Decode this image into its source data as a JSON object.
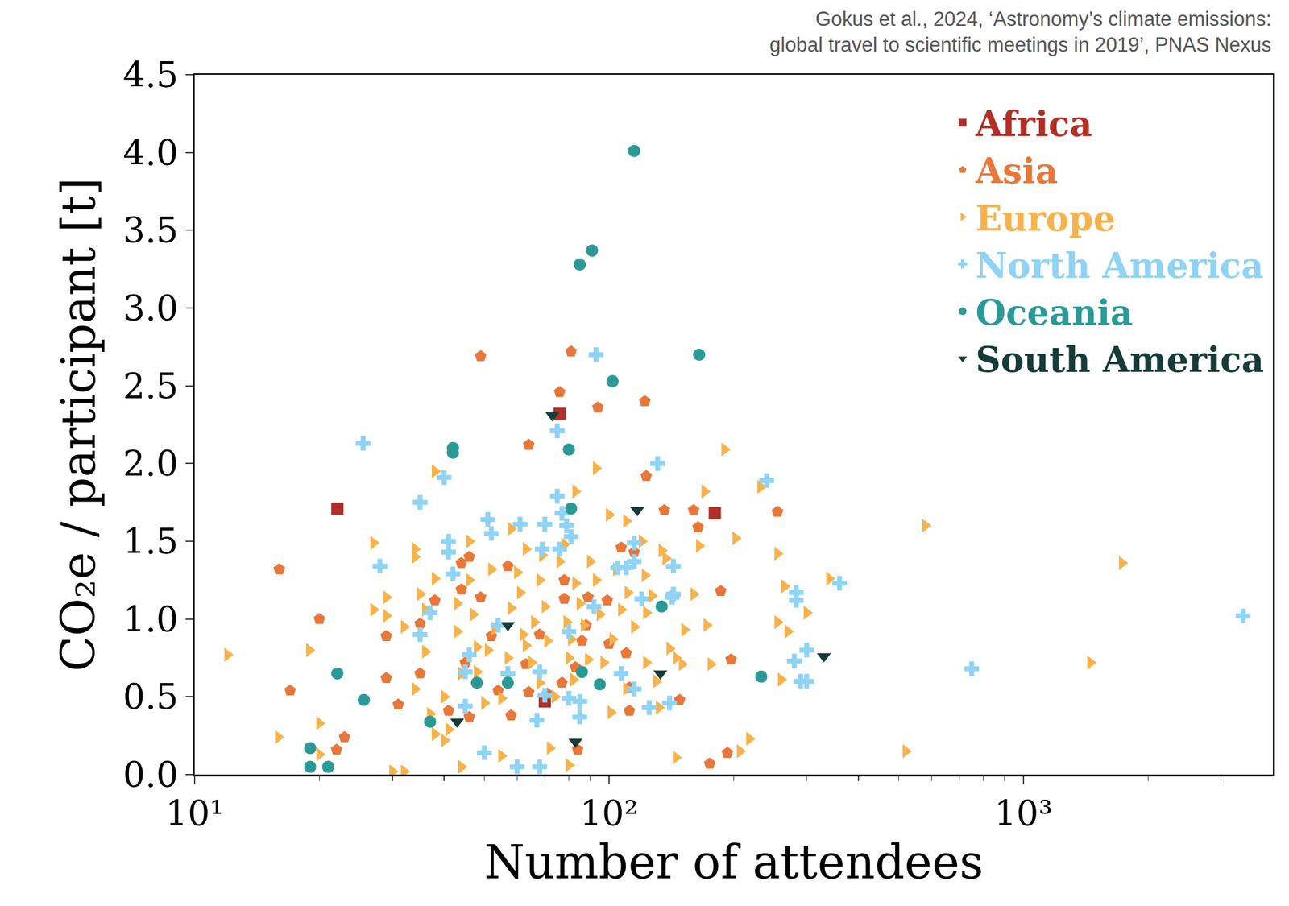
{
  "chart_data": {
    "type": "scatter",
    "subtitle": [
      "Gokus et al., 2024, ‘Astronomy’s climate emissions:",
      "global travel to scientific meetings in 2019’, PNAS Nexus"
    ],
    "x_label": "Number of attendees",
    "y_label": "CO₂e / participant [t]",
    "log": "x",
    "grid": false,
    "legend": "top right",
    "xlim": [
      10,
      4000
    ],
    "xticks": [
      {
        "value": 10,
        "label": "10¹"
      },
      {
        "value": 100,
        "label": "10²"
      },
      {
        "value": 1000,
        "label": "10³"
      }
    ],
    "ylim": [
      0,
      4.5
    ],
    "yticks": [
      {
        "value": 0,
        "label": "0.0"
      },
      0.5,
      {
        "value": 1,
        "label": "1.0"
      },
      1.5,
      {
        "value": 2,
        "label": "2.0"
      },
      2.5,
      {
        "value": 3,
        "label": "3.0"
      },
      3.5,
      {
        "value": 4,
        "label": "4.0"
      },
      4.5
    ],
    "series": [
      {
        "name": "Africa",
        "color": "#b22f27",
        "marker": "square",
        "x": [
          22.1,
          76,
          180,
          70
        ],
        "values": [
          1.71,
          2.32,
          1.68,
          0.47
        ]
      },
      {
        "name": "Asia",
        "color": "#e8773a",
        "marker": "pentagon",
        "x": [
          16,
          17,
          20,
          22,
          23,
          49,
          81,
          76,
          94,
          122,
          64,
          123,
          136,
          160,
          164,
          255,
          186,
          197,
          193,
          175,
          84,
          148,
          112,
          112,
          110,
          115,
          107,
          99,
          89,
          78,
          88,
          86,
          83,
          77,
          71,
          64,
          63,
          58,
          54,
          52,
          49,
          44,
          46,
          44,
          57,
          38,
          35,
          35,
          29,
          29,
          31,
          41,
          46,
          45,
          68,
          100,
          78
        ],
        "values": [
          1.32,
          0.54,
          1.0,
          0.16,
          0.24,
          2.69,
          2.72,
          2.46,
          2.36,
          2.4,
          2.12,
          1.92,
          1.7,
          1.7,
          1.59,
          1.69,
          1.18,
          0.74,
          0.14,
          0.07,
          0.16,
          0.48,
          0.41,
          0.56,
          0.78,
          1.43,
          1.46,
          1.12,
          1.14,
          1.13,
          0.96,
          0.86,
          0.69,
          0.59,
          0.52,
          0.53,
          0.71,
          0.38,
          0.54,
          0.89,
          1.14,
          1.19,
          1.4,
          1.36,
          1.34,
          1.12,
          0.97,
          0.65,
          0.89,
          0.62,
          0.45,
          0.41,
          0.37,
          0.72,
          0.9,
          0.84,
          1.25
        ]
      },
      {
        "name": "Europe",
        "color": "#f7b24b",
        "marker": "triangle-right",
        "x": [
          12,
          15.9,
          18.9,
          20,
          20,
          27,
          29,
          27,
          29,
          32,
          30,
          32,
          34,
          34,
          35,
          36,
          36,
          34,
          37,
          38,
          38,
          38,
          40,
          41,
          43,
          43,
          44,
          46,
          46,
          47,
          48,
          48,
          50,
          51,
          52,
          53,
          55,
          55,
          58,
          58,
          60,
          61,
          62,
          63,
          65,
          63,
          66,
          68,
          69,
          70,
          71,
          72,
          74,
          76,
          78,
          79,
          80,
          81,
          82,
          83,
          83,
          85,
          87,
          89,
          90,
          93,
          93,
          95,
          97,
          100,
          101,
          102,
          104,
          107,
          110,
          111,
          115,
          120,
          122,
          123,
          123,
          127,
          130,
          132,
          134,
          137,
          140,
          145,
          145,
          150,
          152,
          160,
          165,
          170,
          172,
          176,
          190,
          202,
          207,
          218,
          232,
          255,
          255,
          260,
          265,
          270,
          300,
          340,
          580,
          520,
          1450,
          1730,
          80,
          44,
          40,
          57,
          68,
          110
        ],
        "values": [
          0.77,
          0.24,
          0.8,
          0.33,
          0.13,
          1.49,
          1.14,
          1.06,
          1.02,
          0.95,
          0.02,
          0.02,
          1.45,
          1.4,
          1.16,
          1.06,
          0.79,
          0.55,
          0.39,
          1.95,
          1.26,
          0.26,
          0.22,
          0.29,
          0.92,
          1.1,
          0.05,
          1.5,
          1.25,
          1.03,
          0.82,
          0.66,
          0.46,
          0.8,
          1.32,
          0.94,
          0.12,
          0.49,
          1.07,
          1.58,
          1.3,
          1.17,
          0.9,
          0.83,
          0.72,
          1.45,
          0.98,
          1.25,
          1.41,
          1.08,
          0.86,
          0.17,
          0.5,
          1.37,
          1.48,
          0.98,
          0.75,
          0.87,
          0.61,
          1.82,
          1.23,
          1.1,
          0.96,
          0.74,
          1.37,
          1.97,
          1.25,
          1.03,
          0.72,
          1.67,
          0.4,
          0.87,
          1.32,
          1.06,
          1.63,
          1.17,
          0.95,
          1.5,
          1.28,
          0.72,
          1.04,
          1.15,
          0.6,
          0.43,
          1.44,
          1.39,
          0.81,
          0.11,
          0.75,
          0.71,
          0.93,
          1.16,
          1.47,
          1.82,
          0.96,
          0.71,
          2.09,
          1.52,
          0.15,
          0.23,
          1.85,
          1.42,
          0.98,
          0.61,
          1.21,
          0.92,
          1.04,
          1.26,
          1.6,
          0.15,
          0.72,
          1.36,
          0.06,
          0.65,
          0.5,
          0.75,
          0.59,
          0.55
        ]
      },
      {
        "name": "North America",
        "color": "#8fd3f5",
        "marker": "cross",
        "x": [
          25.5,
          28,
          35,
          40,
          41,
          41,
          42,
          35,
          37,
          46,
          45,
          45,
          50,
          51,
          52,
          61,
          70,
          75,
          77,
          79,
          81,
          75,
          93,
          76,
          69,
          80,
          85,
          85,
          68,
          60,
          67,
          57,
          68,
          70,
          80,
          92,
          105,
          110,
          115,
          120,
          107,
          115,
          131,
          142,
          143,
          143,
          140,
          125,
          240,
          283,
          283,
          280,
          290,
          300,
          300,
          360,
          750,
          3390,
          115,
          54
        ],
        "values": [
          2.13,
          1.34,
          1.75,
          1.91,
          1.5,
          1.43,
          1.29,
          0.9,
          1.04,
          0.77,
          0.66,
          0.44,
          0.14,
          1.64,
          1.55,
          1.61,
          1.61,
          1.79,
          1.68,
          1.6,
          1.53,
          2.21,
          2.7,
          1.45,
          1.45,
          0.92,
          0.47,
          0.37,
          0.05,
          0.05,
          0.35,
          0.65,
          0.66,
          0.51,
          0.49,
          1.08,
          1.33,
          1.33,
          1.37,
          1.13,
          0.65,
          0.55,
          2.0,
          1.14,
          1.16,
          1.34,
          0.46,
          0.43,
          1.89,
          1.17,
          1.12,
          0.73,
          0.6,
          0.6,
          0.8,
          1.23,
          0.68,
          1.02,
          1.49,
          0.96
        ]
      },
      {
        "name": "Oceania",
        "color": "#2b9a96",
        "marker": "circle",
        "x": [
          115,
          91,
          85,
          165,
          102,
          42,
          42,
          80,
          81,
          134,
          22.1,
          25.6,
          37,
          48,
          57,
          86,
          95,
          233,
          19,
          19,
          21
        ],
        "values": [
          4.01,
          3.37,
          3.28,
          2.7,
          2.53,
          2.1,
          2.07,
          2.09,
          1.71,
          1.08,
          0.65,
          0.48,
          0.34,
          0.59,
          0.59,
          0.66,
          0.58,
          0.63,
          0.17,
          0.05,
          0.05
        ]
      },
      {
        "name": "South America",
        "color": "#163b38",
        "marker": "triangle-down",
        "x": [
          73,
          117,
          57,
          43,
          83,
          133,
          330
        ],
        "values": [
          2.31,
          1.7,
          0.96,
          0.34,
          0.21,
          0.65,
          0.76
        ]
      }
    ]
  }
}
